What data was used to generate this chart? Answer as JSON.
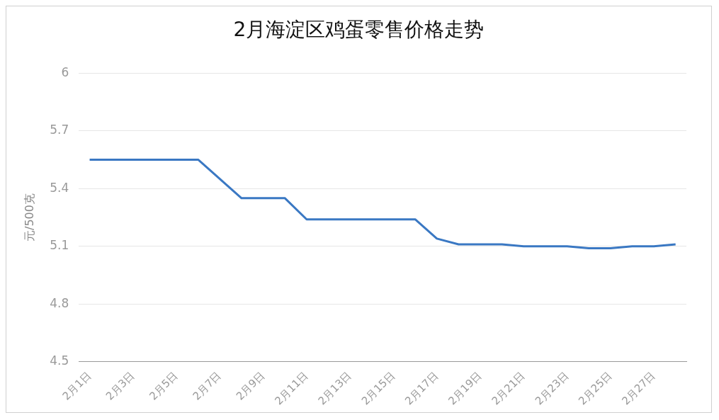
{
  "chart_data": {
    "type": "line",
    "title": "2月海淀区鸡蛋零售价格走势",
    "ylabel": "元/500克",
    "categories": [
      "2月1日",
      null,
      "2月3日",
      null,
      "2月5日",
      null,
      "2月7日",
      null,
      "2月9日",
      null,
      "2月11日",
      null,
      "2月13日",
      null,
      "2月15日",
      null,
      "2月17日",
      null,
      "2月19日",
      null,
      "2月21日",
      null,
      "2月23日",
      null,
      "2月25日",
      null,
      "2月27日",
      null
    ],
    "series": [
      {
        "color": "#3a78c3",
        "values": [
          5.55,
          5.55,
          5.55,
          5.55,
          5.55,
          5.55,
          5.45,
          5.35,
          5.35,
          5.35,
          5.24,
          5.24,
          5.24,
          5.24,
          5.24,
          5.24,
          5.14,
          5.11,
          5.11,
          5.11,
          5.1,
          5.1,
          5.1,
          5.09,
          5.09,
          5.1,
          5.1,
          5.11
        ]
      }
    ],
    "ylim": [
      4.5,
      6
    ],
    "yticks": [
      4.5,
      4.8,
      5.1,
      5.4,
      5.7,
      6
    ],
    "grid": "y",
    "legend": false,
    "marker": "none",
    "line_style": "solid"
  }
}
